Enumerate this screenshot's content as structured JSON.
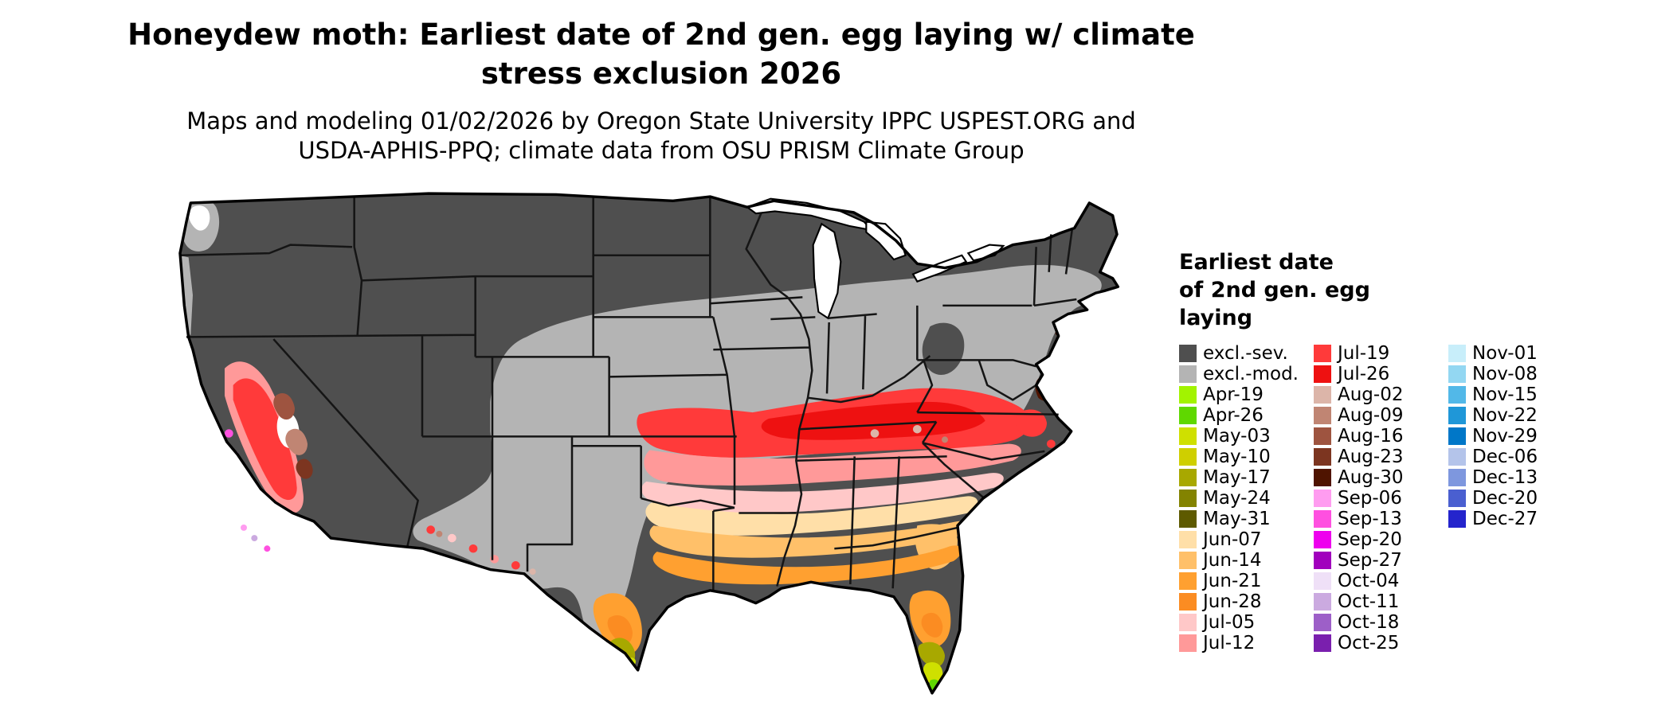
{
  "title": {
    "line1": "Honeydew moth: Earliest date of 2nd gen. egg laying w/ climate",
    "line2": "stress exclusion 2026"
  },
  "subtitle": {
    "line1": "Maps and modeling 01/02/2026 by Oregon State University IPPC USPEST.ORG and",
    "line2": "USDA-APHIS-PPQ; climate data from OSU PRISM Climate Group"
  },
  "legend": {
    "title_lines": [
      "Earliest date",
      "of 2nd gen. egg",
      "laying"
    ],
    "columns": [
      {
        "entries": [
          {
            "label": "excl.-sev.",
            "color": "#4f4f4f"
          },
          {
            "label": "excl.-mod.",
            "color": "#b4b4b4"
          },
          {
            "label": "Apr-19",
            "color": "#a2f300"
          },
          {
            "label": "Apr-26",
            "color": "#5fd800"
          },
          {
            "label": "May-03",
            "color": "#cfe000"
          },
          {
            "label": "May-10",
            "color": "#cfcf00"
          },
          {
            "label": "May-17",
            "color": "#a8a800"
          },
          {
            "label": "May-24",
            "color": "#838300"
          },
          {
            "label": "May-31",
            "color": "#5e5a00"
          },
          {
            "label": "Jun-07",
            "color": "#ffdfa8"
          },
          {
            "label": "Jun-14",
            "color": "#ffc069"
          },
          {
            "label": "Jun-21",
            "color": "#ffa030"
          },
          {
            "label": "Jun-28",
            "color": "#fb8c22"
          },
          {
            "label": "Jul-05",
            "color": "#ffc8c8"
          },
          {
            "label": "Jul-12",
            "color": "#ff9999"
          }
        ]
      },
      {
        "entries": [
          {
            "label": "Jul-19",
            "color": "#ff3a3a"
          },
          {
            "label": "Jul-26",
            "color": "#ee1111"
          },
          {
            "label": "Aug-02",
            "color": "#dcb5a9"
          },
          {
            "label": "Aug-09",
            "color": "#c08573"
          },
          {
            "label": "Aug-16",
            "color": "#9e5440"
          },
          {
            "label": "Aug-23",
            "color": "#7c3520"
          },
          {
            "label": "Aug-30",
            "color": "#4f1400"
          },
          {
            "label": "Sep-06",
            "color": "#ff9cf0"
          },
          {
            "label": "Sep-13",
            "color": "#ff50e0"
          },
          {
            "label": "Sep-20",
            "color": "#ee00ee"
          },
          {
            "label": "Sep-27",
            "color": "#a100bd"
          },
          {
            "label": "Oct-04",
            "color": "#efe0f7"
          },
          {
            "label": "Oct-11",
            "color": "#cbaae0"
          },
          {
            "label": "Oct-18",
            "color": "#9d5fc8"
          },
          {
            "label": "Oct-25",
            "color": "#7a1fae"
          }
        ]
      },
      {
        "entries": [
          {
            "label": "Nov-01",
            "color": "#c8eefa"
          },
          {
            "label": "Nov-08",
            "color": "#93d7f2"
          },
          {
            "label": "Nov-15",
            "color": "#52b8e8"
          },
          {
            "label": "Nov-22",
            "color": "#1f97d8"
          },
          {
            "label": "Nov-29",
            "color": "#0077c8"
          },
          {
            "label": "Dec-06",
            "color": "#b4c4ea"
          },
          {
            "label": "Dec-13",
            "color": "#7e97de"
          },
          {
            "label": "Dec-20",
            "color": "#4a5fd0"
          },
          {
            "label": "Dec-27",
            "color": "#2424cc"
          }
        ]
      }
    ]
  },
  "map": {
    "region_colors": {
      "excl_sev": "#4f4f4f",
      "excl_mod": "#b4b4b4",
      "white": "#ffffff",
      "apr19": "#a2f300",
      "apr26": "#5fd800",
      "may03": "#cfe000",
      "may10": "#cfcf00",
      "may17": "#a8a800",
      "may24": "#838300",
      "may31": "#5e5a00",
      "jun07": "#ffdfa8",
      "jun14": "#ffc069",
      "jun21": "#ffa030",
      "jun28": "#fb8c22",
      "jul05": "#ffc8c8",
      "jul12": "#ff9999",
      "jul19": "#ff3a3a",
      "jul26": "#ee1111",
      "aug02": "#dcb5a9",
      "aug09": "#c08573",
      "aug16": "#9e5440",
      "aug23": "#7c3520",
      "aug30": "#4f1400",
      "sep06": "#ff9cf0",
      "sep13": "#ff50e0",
      "sep20": "#ee00ee",
      "sep27": "#a100bd",
      "oct11": "#cbaae0",
      "oct18": "#9d5fc8",
      "oct25": "#7a1fae",
      "outline": "#000000",
      "state_border": "#151515",
      "lake_fill": "#ffffff"
    }
  }
}
